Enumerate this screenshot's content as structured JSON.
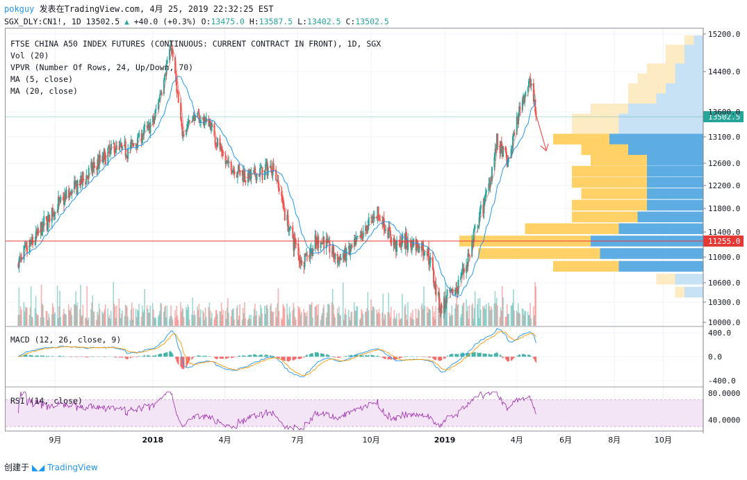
{
  "header": {
    "user": "pokguy",
    "published": "发表在TradingView.com, 4月 25, 2019 22:32:25 EST",
    "symbol": "SGX_DLY:CN1!, 1D",
    "last": "13502.5",
    "change": "+40.0 (+0.3%)",
    "o_label": "O:",
    "o": "13475.0",
    "h_label": "H:",
    "h": "13587.5",
    "l_label": "L:",
    "l": "13402.5",
    "c_label": "C:",
    "c": "13502.5"
  },
  "chart_data": {
    "type": "candlestick",
    "title": "FTSE CHINA A50 INDEX FUTURES (CONTINUOUS: CURRENT CONTRACT IN FRONT), 1D, SGX",
    "indicators": [
      "Vol (20)",
      "VPVR (Number Of Rows, 24, Up/Down, 70)",
      "MA (5, close)",
      "MA (20, close)"
    ],
    "price_axis": {
      "ticks": [
        15200.0,
        14400.0,
        13600.0,
        13100.0,
        12600.0,
        12200.0,
        11800.0,
        11400.0,
        11000.0,
        10600.0,
        10300.0,
        10000.0
      ],
      "tick_labels": [
        "15200.0",
        "14400.0",
        "13600.0",
        "13100.0",
        "12600.0",
        "12200.0",
        "11800.0",
        "11400.0",
        "11000.0",
        "10600.0",
        "10300.0",
        "10000.0"
      ],
      "last_price_label": "13502.5",
      "horizontal_line_label": "11255.0",
      "horizontal_line_value": 11255.0
    },
    "x_axis": {
      "labels": [
        "9月",
        "2018",
        "4月",
        "7月",
        "10月",
        "2019",
        "4月",
        "6月",
        "8月",
        "10月"
      ],
      "bold": [
        false,
        true,
        false,
        false,
        false,
        true,
        false,
        false,
        false,
        false
      ]
    },
    "close_series": {
      "x": [
        "2017-07-17",
        "2017-08-07",
        "2017-09-01",
        "2017-10-02",
        "2017-11-13",
        "2017-12-01",
        "2018-01-02",
        "2018-01-24",
        "2018-02-06",
        "2018-02-20",
        "2018-03-12",
        "2018-04-02",
        "2018-05-02",
        "2018-06-01",
        "2018-06-19",
        "2018-07-05",
        "2018-08-01",
        "2018-08-20",
        "2018-09-10",
        "2018-10-08",
        "2018-10-30",
        "2018-11-19",
        "2018-12-10",
        "2018-12-27",
        "2019-01-15",
        "2019-02-01",
        "2019-02-25",
        "2019-03-07",
        "2019-03-21",
        "2019-04-08",
        "2019-04-19",
        "2019-04-25"
      ],
      "values": [
        10900,
        11300,
        11800,
        12250,
        12900,
        12850,
        13400,
        14950,
        13200,
        13500,
        13400,
        12600,
        12350,
        12550,
        11500,
        10950,
        11300,
        10950,
        11150,
        11750,
        11200,
        11250,
        11100,
        10200,
        10500,
        11050,
        12200,
        13000,
        12600,
        13900,
        14200,
        13502.5
      ]
    },
    "volume_profile": {
      "price_rows": [
        15050,
        14850,
        14650,
        14450,
        14250,
        14050,
        13850,
        13650,
        13450,
        13250,
        13050,
        12850,
        12650,
        12450,
        12250,
        12050,
        11850,
        11650,
        11450,
        11250,
        11050,
        10850,
        10650,
        10450
      ],
      "up": [
        1,
        2,
        2,
        3,
        4,
        4,
        3,
        4,
        5,
        5,
        6,
        5,
        6,
        8,
        8,
        7,
        8,
        7,
        10,
        14,
        13,
        7,
        2,
        1
      ],
      "down": [
        1,
        2,
        2,
        3,
        3,
        4,
        5,
        8,
        9,
        9,
        10,
        8,
        6,
        6,
        6,
        6,
        6,
        7,
        9,
        12,
        11,
        9,
        3,
        2
      ]
    },
    "macd": {
      "label": "MACD (12, 26, close, 9)",
      "ticks": [
        400.0,
        0.0,
        -400.0
      ],
      "tick_labels": [
        "400.0",
        "0.0",
        "-400.0"
      ]
    },
    "rsi": {
      "label": "RSI (14, close)",
      "ticks": [
        80.0,
        40.0
      ],
      "tick_labels": [
        "80.0000",
        "40.0000"
      ],
      "band": [
        30,
        70
      ]
    },
    "colors": {
      "up": "#26a69a",
      "down": "#ef5350",
      "ma5": "#f44336",
      "ma20": "#2196f3",
      "vp_up": "#ffd166",
      "vp_down": "#5dade2",
      "vp_up_light": "#fdebc4",
      "vp_down_light": "#c8e2f5",
      "hline": "#e53935",
      "last": "#26a69a",
      "rsi": "#9c27b0",
      "rsi_band": "#f3e5f5"
    }
  },
  "footer": {
    "created": "创建于",
    "brand": "TradingView"
  }
}
